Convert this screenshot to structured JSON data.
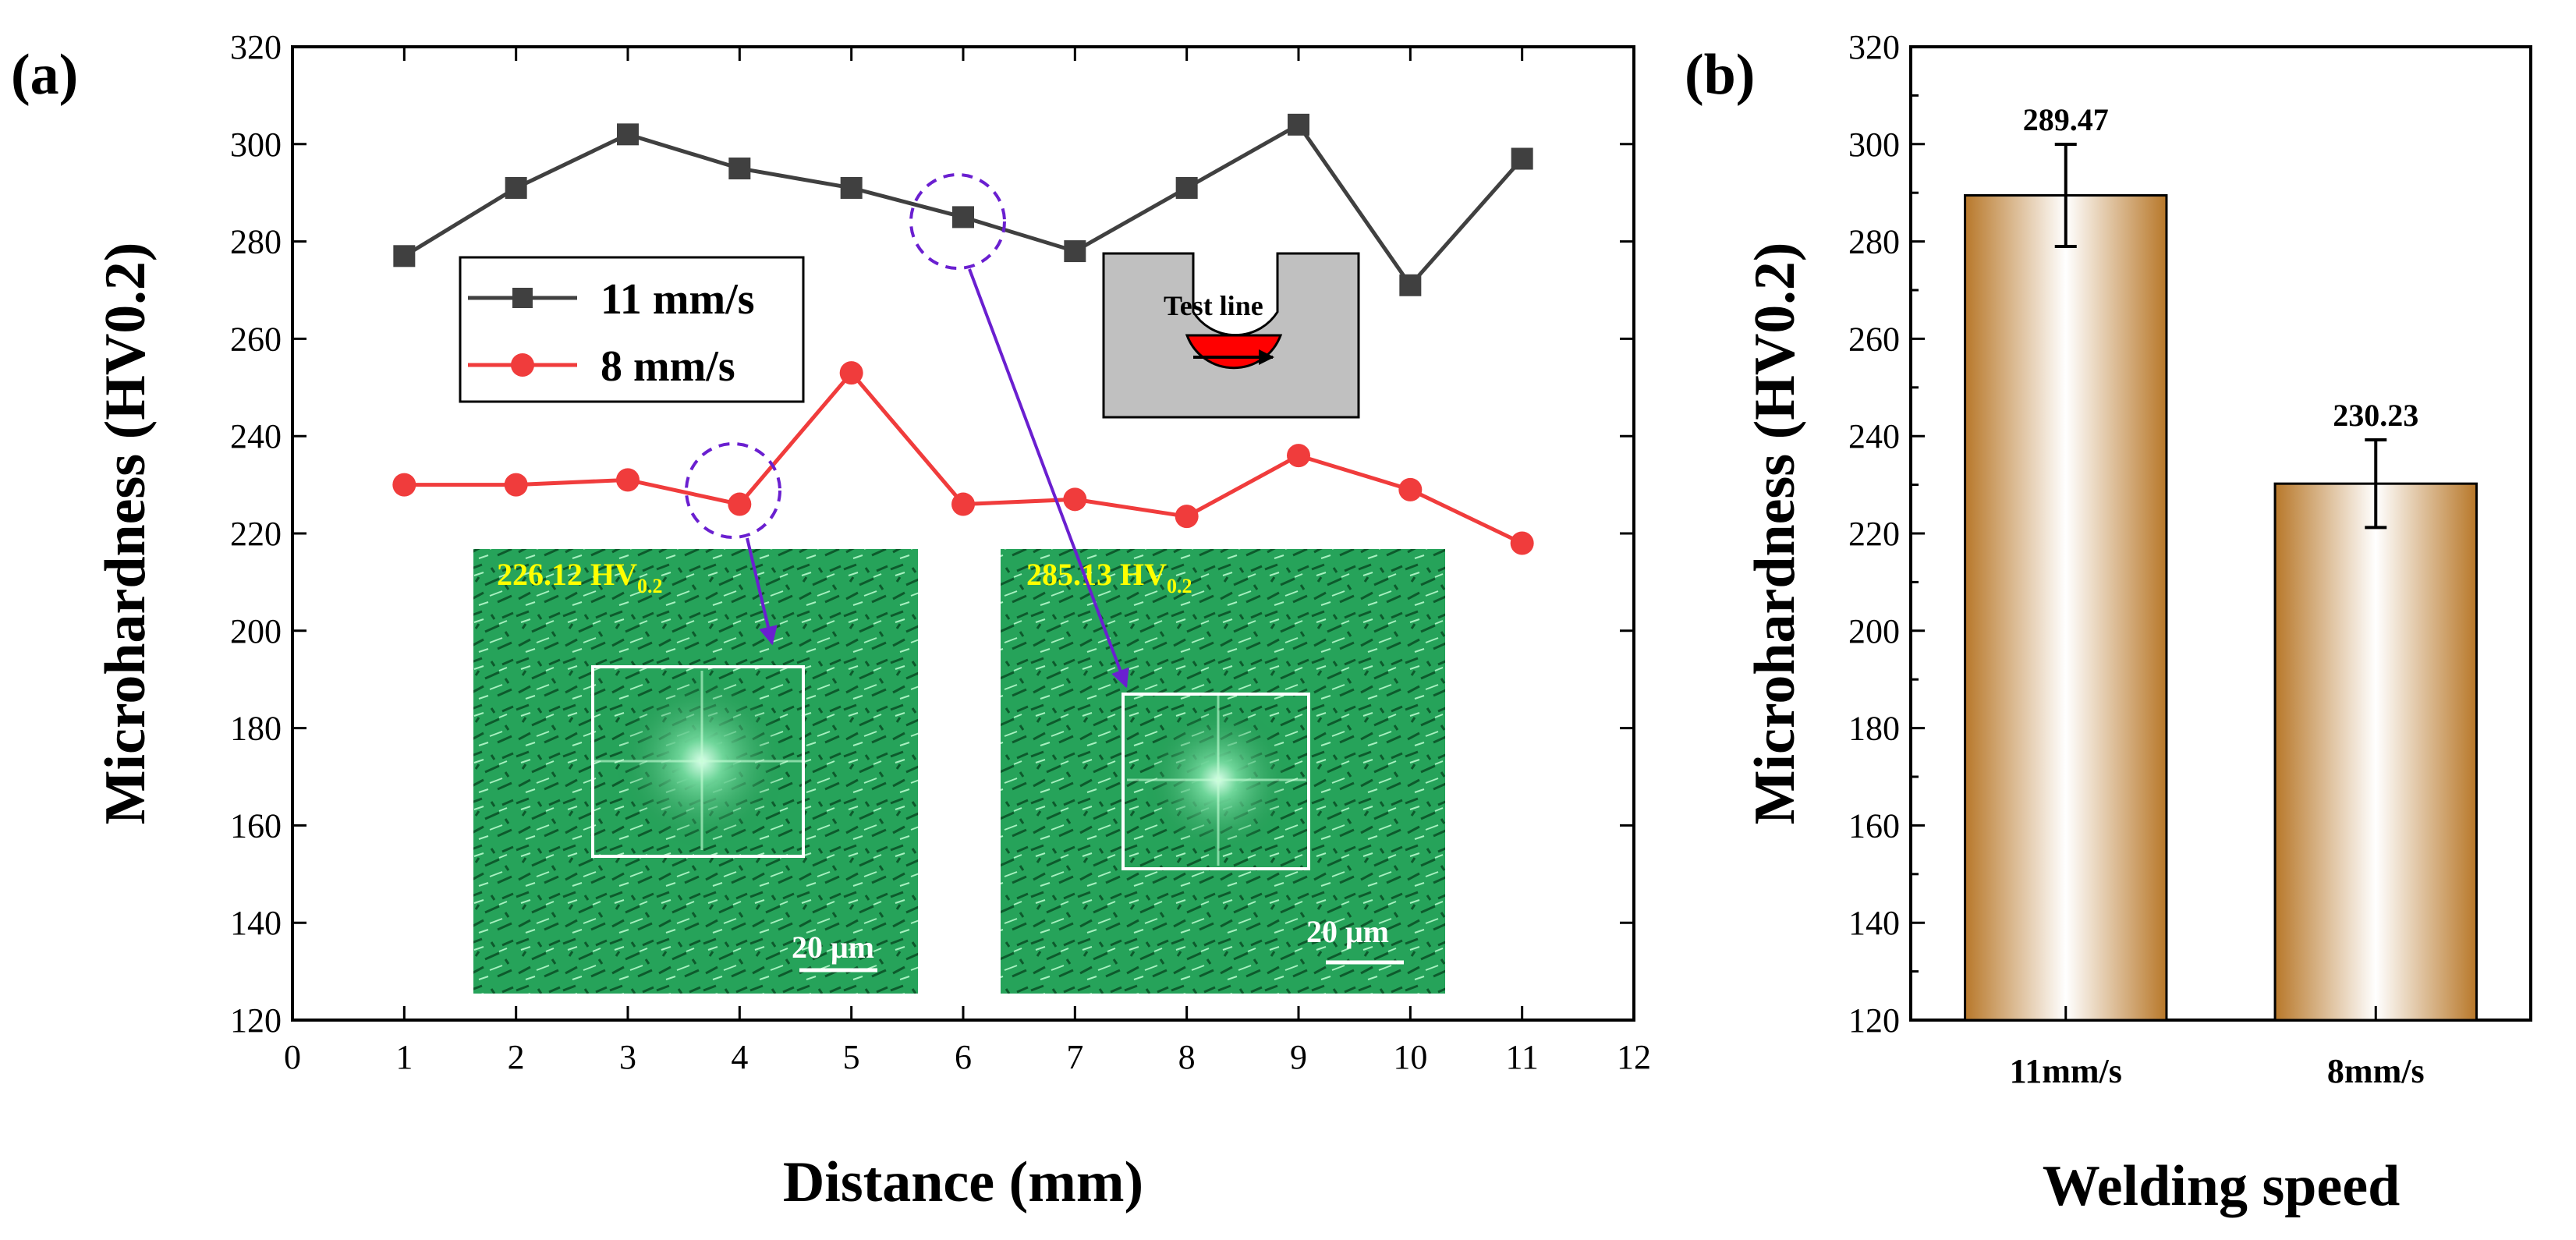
{
  "chart_data": [
    {
      "panel": "(a)",
      "type": "line",
      "xlabel": "Distance (mm)",
      "ylabel": "Microhardness (HV0.2)",
      "xlim": [
        0,
        12
      ],
      "ylim": [
        120,
        320
      ],
      "xticks": [
        0,
        1,
        2,
        3,
        4,
        5,
        6,
        7,
        8,
        9,
        10,
        11,
        12
      ],
      "yticks": [
        120,
        140,
        160,
        180,
        200,
        220,
        240,
        260,
        280,
        300,
        320
      ],
      "x": [
        1,
        2,
        3,
        4,
        5,
        6,
        7,
        8,
        9,
        10,
        11
      ],
      "series": [
        {
          "name": "11 mm/s",
          "color": "#404040",
          "marker": "square",
          "values": [
            277,
            291,
            302,
            295,
            291,
            285,
            278,
            291,
            304,
            271,
            297
          ]
        },
        {
          "name": "8 mm/s",
          "color": "#f03c3c",
          "marker": "circle",
          "values": [
            230,
            230,
            231,
            226,
            253,
            226,
            227,
            223.5,
            236,
            229,
            218
          ]
        }
      ],
      "legend_position": "upper-left",
      "inset_label": "Test line",
      "micrographs": [
        {
          "value_label": "226.12 HV",
          "value_sub": "0.2",
          "scale_bar": "20 μm",
          "points_to": {
            "series": "8 mm/s",
            "x": 4
          }
        },
        {
          "value_label": "285.13 HV",
          "value_sub": "0.2",
          "scale_bar": "20 μm",
          "points_to": {
            "series": "11 mm/s",
            "x": 6
          }
        }
      ]
    },
    {
      "panel": "(b)",
      "type": "bar",
      "xlabel": "Welding speed",
      "ylabel": "Microhardness (HV0.2)",
      "ylim": [
        120,
        320
      ],
      "yticks": [
        120,
        140,
        160,
        180,
        200,
        220,
        240,
        260,
        280,
        300,
        320
      ],
      "categories": [
        "11mm/s",
        "8mm/s"
      ],
      "values": [
        289.47,
        230.23
      ],
      "value_labels": [
        "289.47",
        "230.23"
      ],
      "errors": [
        10.5,
        9
      ],
      "bar_color": "#b8782a"
    }
  ]
}
